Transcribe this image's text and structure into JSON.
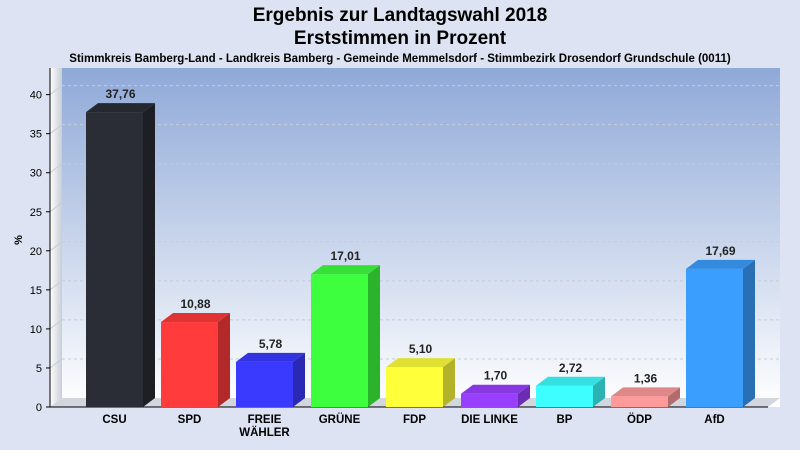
{
  "chart_data": {
    "type": "bar",
    "title": "Ergebnis zur Landtagswahl 2018",
    "title2": "Erststimmen in Prozent",
    "subtitle": "Stimmkreis Bamberg-Land - Landkreis Bamberg - Gemeinde Memmelsdorf - Stimmbezirk Drosendorf Grundschule (0011)",
    "ylabel": "%",
    "ylim": [
      0,
      42
    ],
    "yticks": [
      0,
      5,
      10,
      15,
      20,
      25,
      30,
      35,
      40
    ],
    "grid": true,
    "categories": [
      "CSU",
      "SPD",
      "FREIE WÄHLER",
      "GRÜNE",
      "FDP",
      "DIE LINKE",
      "BP",
      "ÖDP",
      "AfD"
    ],
    "category_lines": [
      [
        "CSU"
      ],
      [
        "SPD"
      ],
      [
        "FREIE",
        "WÄHLER"
      ],
      [
        "GRÜNE"
      ],
      [
        "FDP"
      ],
      [
        "DIE LINKE"
      ],
      [
        "BP"
      ],
      [
        "ÖDP"
      ],
      [
        "AfD"
      ]
    ],
    "values": [
      37.76,
      10.88,
      5.78,
      17.01,
      5.1,
      1.7,
      2.72,
      1.36,
      17.69
    ],
    "value_labels": [
      "37,76",
      "10,88",
      "5,78",
      "17,01",
      "5,10",
      "1,70",
      "2,72",
      "1,36",
      "17,69"
    ],
    "colors": [
      "#2a2d35",
      "#ff3b3b",
      "#3a3aff",
      "#3dff3d",
      "#ffff3a",
      "#9940ff",
      "#3dffff",
      "#ff9a9a",
      "#3a9eff"
    ]
  }
}
